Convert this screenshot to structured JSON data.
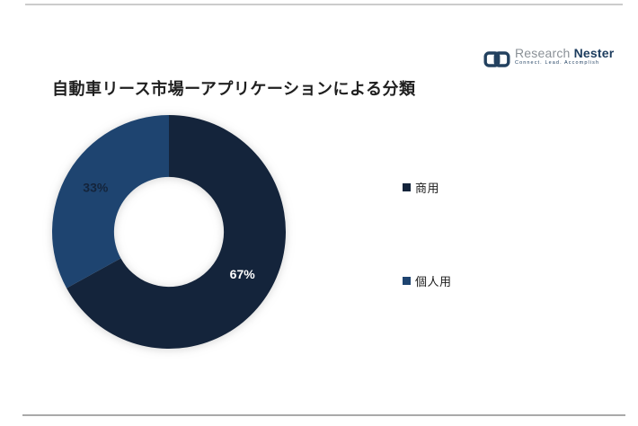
{
  "page": {
    "background": "#ffffff",
    "top_rule_color": "#cccccc",
    "bottom_rule_color": "#a9a9a9"
  },
  "header": {
    "title": "自動車リース市場ーアプリケーションによる分類",
    "logo": {
      "icon": "chain-link-icon",
      "icon_color": "#23415f",
      "brand_word_1": "Research",
      "brand_word_2": "Nester",
      "tagline": "Connect. Lead. Accomplish",
      "gray_color": "#8b9197",
      "navy_color": "#1c3c5e"
    }
  },
  "chart_data": {
    "type": "pie",
    "subtype": "donut",
    "title": "自動車リース市場ーアプリケーションによる分類",
    "categories": [
      "商用",
      "個人用"
    ],
    "values": [
      67,
      33
    ],
    "data_labels": [
      "67%",
      "33%"
    ],
    "slice_colors": [
      "#14243B",
      "#1E4470"
    ],
    "data_label_colors": [
      "#ffffff",
      "#14243B"
    ],
    "start_angle_deg": 0,
    "direction": "clockwise",
    "inner_radius_ratio": 0.47,
    "label_radius_ratio": 0.73,
    "legend_position": "right",
    "grid": false
  },
  "legend": {
    "items": [
      {
        "label": "商用",
        "color": "#14243B"
      },
      {
        "label": "個人用",
        "color": "#1E4470"
      }
    ]
  }
}
